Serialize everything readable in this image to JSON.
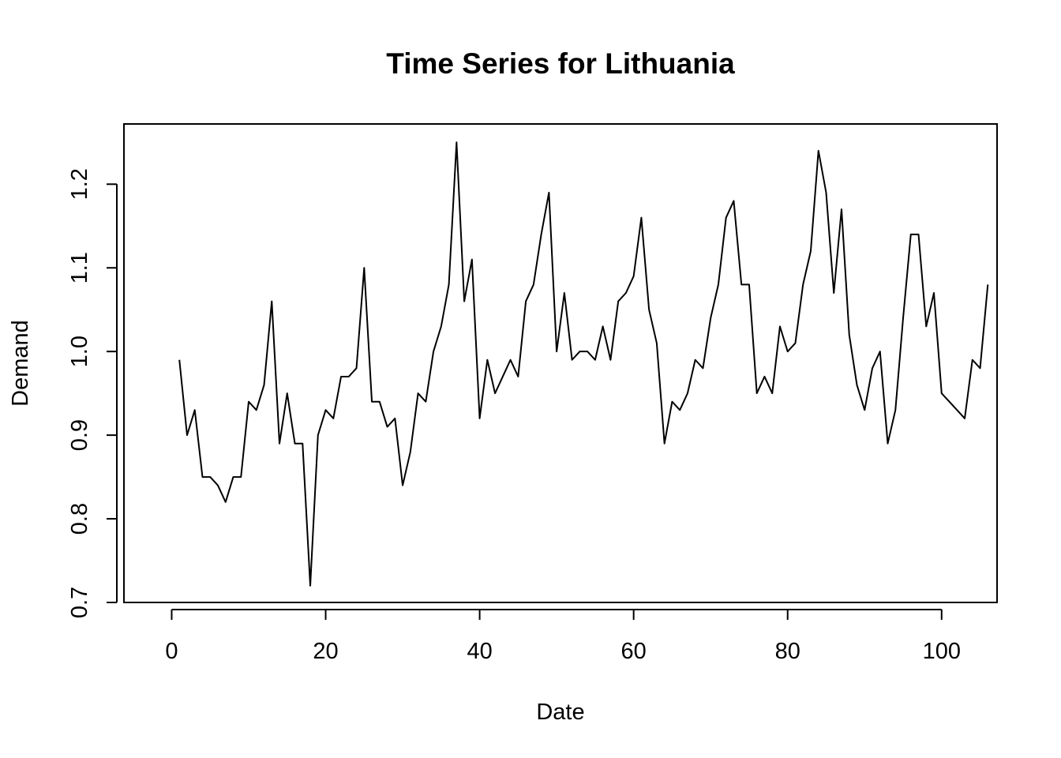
{
  "chart_data": {
    "type": "line",
    "title": "Time Series for Lithuania",
    "xlabel": "Date",
    "ylabel": "Demand",
    "xlim": [
      -6.2,
      107.2
    ],
    "ylim": [
      0.7,
      1.272
    ],
    "x_ticks": [
      0,
      20,
      40,
      60,
      80,
      100
    ],
    "x_tick_labels": [
      "0",
      "20",
      "40",
      "60",
      "80",
      "100"
    ],
    "y_ticks": [
      0.7,
      0.8,
      0.9,
      1.0,
      1.1,
      1.2
    ],
    "y_tick_labels": [
      "0.7",
      "0.8",
      "0.9",
      "1.0",
      "1.1",
      "1.2"
    ],
    "grid": false,
    "line_color": "#000000",
    "x": [
      1,
      2,
      3,
      4,
      5,
      6,
      7,
      8,
      9,
      10,
      11,
      12,
      13,
      14,
      15,
      16,
      17,
      18,
      19,
      20,
      21,
      22,
      23,
      24,
      25,
      26,
      27,
      28,
      29,
      30,
      31,
      32,
      33,
      34,
      35,
      36,
      37,
      38,
      39,
      40,
      41,
      42,
      43,
      44,
      45,
      46,
      47,
      48,
      49,
      50,
      51,
      52,
      53,
      54,
      55,
      56,
      57,
      58,
      59,
      60,
      61,
      62,
      63,
      64,
      65,
      66,
      67,
      68,
      69,
      70,
      71,
      72,
      73,
      74,
      75,
      76,
      77,
      78,
      79,
      80,
      81,
      82,
      83,
      84,
      85,
      86,
      87,
      88,
      89,
      90,
      91,
      92,
      93,
      94,
      95,
      96,
      97,
      98,
      99,
      100,
      101,
      102,
      103,
      104,
      105,
      106
    ],
    "values": [
      0.99,
      0.9,
      0.93,
      0.85,
      0.85,
      0.84,
      0.82,
      0.85,
      0.85,
      0.94,
      0.93,
      0.96,
      1.06,
      0.89,
      0.95,
      0.89,
      0.89,
      0.72,
      0.9,
      0.93,
      0.92,
      0.97,
      0.97,
      0.98,
      1.1,
      0.94,
      0.94,
      0.91,
      0.92,
      0.84,
      0.88,
      0.95,
      0.94,
      1.0,
      1.03,
      1.08,
      1.25,
      1.06,
      1.11,
      0.92,
      0.99,
      0.95,
      0.97,
      0.99,
      0.97,
      1.06,
      1.08,
      1.14,
      1.19,
      1.0,
      1.07,
      0.99,
      1.0,
      1.0,
      0.99,
      1.03,
      0.99,
      1.06,
      1.07,
      1.09,
      1.16,
      1.05,
      1.01,
      0.89,
      0.94,
      0.93,
      0.95,
      0.99,
      0.98,
      1.04,
      1.08,
      1.16,
      1.18,
      1.08,
      1.08,
      0.95,
      0.97,
      0.95,
      1.03,
      1.0,
      1.01,
      1.08,
      1.12,
      1.24,
      1.19,
      1.07,
      1.17,
      1.02,
      0.96,
      0.93,
      0.98,
      1.0,
      0.89,
      0.93,
      1.04,
      1.14,
      1.14,
      1.03,
      1.07,
      0.95,
      0.94,
      0.93,
      0.92,
      0.99,
      0.98,
      1.08
    ]
  }
}
